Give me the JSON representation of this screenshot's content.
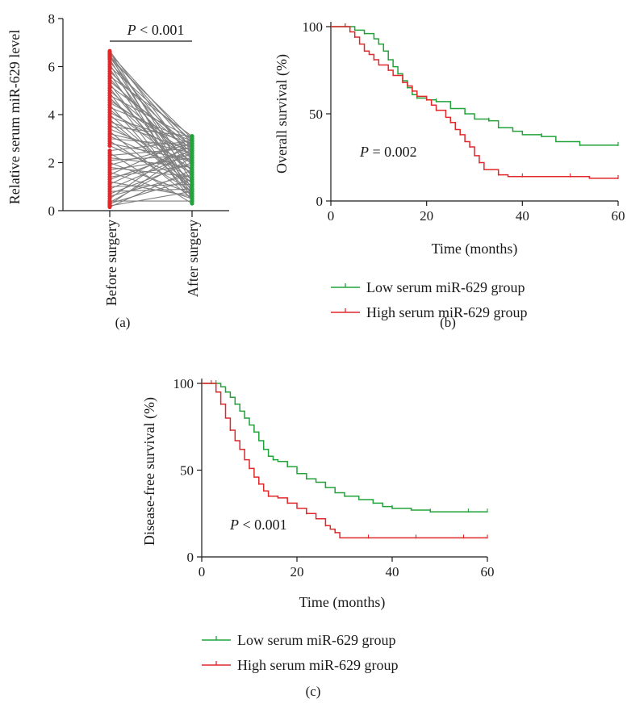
{
  "chart_data": [
    {
      "panel": "(a)",
      "type": "scatter",
      "xlabel": "",
      "ylabel": "Relative serum miR-629 level",
      "categories": [
        "Before surgery",
        "After surgery"
      ],
      "ylim": [
        0,
        8
      ],
      "yticks": [
        0,
        2,
        4,
        6,
        8
      ],
      "annotation": {
        "p_label": "P",
        "p_rest": " < 0.001"
      },
      "colors": {
        "before": "#e0282b",
        "after": "#21a33a",
        "lines": "#7f7f7f"
      },
      "pairs": [
        [
          6.65,
          2.1
        ],
        [
          6.6,
          1.2
        ],
        [
          6.55,
          2.8
        ],
        [
          6.5,
          0.6
        ],
        [
          6.45,
          2.6
        ],
        [
          6.4,
          1.6
        ],
        [
          6.35,
          3.0
        ],
        [
          6.3,
          0.9
        ],
        [
          6.2,
          2.2
        ],
        [
          6.1,
          0.5
        ],
        [
          6.0,
          2.9
        ],
        [
          5.9,
          1.4
        ],
        [
          5.8,
          2.5
        ],
        [
          5.7,
          0.8
        ],
        [
          5.6,
          3.1
        ],
        [
          5.5,
          1.9
        ],
        [
          5.4,
          2.4
        ],
        [
          5.3,
          0.7
        ],
        [
          5.2,
          2.7
        ],
        [
          5.1,
          1.1
        ],
        [
          5.0,
          2.0
        ],
        [
          4.9,
          0.4
        ],
        [
          4.8,
          3.0
        ],
        [
          4.7,
          1.5
        ],
        [
          4.6,
          2.3
        ],
        [
          4.5,
          2.6
        ],
        [
          4.4,
          0.6
        ],
        [
          4.3,
          2.9
        ],
        [
          4.2,
          1.7
        ],
        [
          4.1,
          2.2
        ],
        [
          4.0,
          1.0
        ],
        [
          3.9,
          2.8
        ],
        [
          3.8,
          0.9
        ],
        [
          3.7,
          2.5
        ],
        [
          3.6,
          1.3
        ],
        [
          3.5,
          3.1
        ],
        [
          3.4,
          2.0
        ],
        [
          3.3,
          0.5
        ],
        [
          3.2,
          2.4
        ],
        [
          3.1,
          1.6
        ],
        [
          3.0,
          2.7
        ],
        [
          2.9,
          0.8
        ],
        [
          2.8,
          2.1
        ],
        [
          2.7,
          1.2
        ],
        [
          2.5,
          2.9
        ],
        [
          2.4,
          0.3
        ],
        [
          2.3,
          2.6
        ],
        [
          2.2,
          1.8
        ],
        [
          2.1,
          2.3
        ],
        [
          2.0,
          0.7
        ],
        [
          1.9,
          2.8
        ],
        [
          1.8,
          1.4
        ],
        [
          1.7,
          2.2
        ],
        [
          1.6,
          0.5
        ],
        [
          1.5,
          3.0
        ],
        [
          1.4,
          1.9
        ],
        [
          1.3,
          2.5
        ],
        [
          1.2,
          0.6
        ],
        [
          1.1,
          2.7
        ],
        [
          1.0,
          1.1
        ],
        [
          0.9,
          2.4
        ],
        [
          0.8,
          0.9
        ],
        [
          0.7,
          2.0
        ],
        [
          0.6,
          1.5
        ],
        [
          0.5,
          2.9
        ],
        [
          0.4,
          0.4
        ],
        [
          0.35,
          2.2
        ],
        [
          0.3,
          1.3
        ],
        [
          0.25,
          2.6
        ],
        [
          0.2,
          0.8
        ],
        [
          0.15,
          1.7
        ]
      ]
    },
    {
      "panel": "(b)",
      "type": "line",
      "xlabel": "Time (months)",
      "ylabel": "Overall survival (%)",
      "xlim": [
        0,
        60
      ],
      "ylim": [
        0,
        100
      ],
      "xticks": [
        0,
        20,
        40,
        60
      ],
      "yticks": [
        0,
        50,
        100
      ],
      "annotation": {
        "p_label": "P",
        "p_rest": " = 0.002"
      },
      "series": [
        {
          "name": "Low serum miR-629 group",
          "color": "#21a33a",
          "x": [
            0,
            3,
            5,
            7,
            9,
            10,
            11,
            12,
            13,
            14,
            15,
            16,
            17,
            18,
            20,
            22,
            25,
            28,
            30,
            33,
            35,
            38,
            40,
            44,
            47,
            52,
            56,
            60
          ],
          "y": [
            100,
            100,
            98,
            96,
            93,
            90,
            86,
            81,
            77,
            73,
            69,
            65,
            61,
            59,
            58,
            57,
            53,
            50,
            47,
            46,
            42,
            40,
            38,
            37,
            34,
            32,
            32,
            32
          ]
        },
        {
          "name": "High serum miR-629 group",
          "color": "#e0282b",
          "x": [
            0,
            3,
            4,
            5,
            6,
            7,
            8,
            9,
            10,
            12,
            13,
            15,
            16,
            17,
            18,
            20,
            21,
            22,
            24,
            25,
            26,
            27,
            28,
            29,
            30,
            31,
            32,
            35,
            37,
            40,
            45,
            50,
            54,
            60
          ],
          "y": [
            100,
            100,
            97,
            94,
            90,
            86,
            84,
            81,
            78,
            75,
            72,
            68,
            66,
            63,
            60,
            58,
            55,
            52,
            48,
            45,
            41,
            38,
            34,
            31,
            26,
            22,
            18,
            15,
            14,
            14,
            14,
            14,
            13,
            13
          ]
        }
      ]
    },
    {
      "panel": "(c)",
      "type": "line",
      "xlabel": "Time (months)",
      "ylabel": "Disease-free survival (%)",
      "xlim": [
        0,
        60
      ],
      "ylim": [
        0,
        100
      ],
      "xticks": [
        0,
        20,
        40,
        60
      ],
      "yticks": [
        0,
        50,
        100
      ],
      "annotation": {
        "p_label": "P",
        "p_rest": " < 0.001"
      },
      "series": [
        {
          "name": "Low serum miR-629 group",
          "color": "#21a33a",
          "x": [
            0,
            3,
            4,
            5,
            6,
            7,
            8,
            9,
            10,
            11,
            12,
            13,
            14,
            15,
            16,
            18,
            20,
            22,
            24,
            26,
            28,
            30,
            33,
            36,
            38,
            40,
            44,
            48,
            52,
            56,
            60
          ],
          "y": [
            100,
            100,
            98,
            95,
            92,
            88,
            84,
            80,
            76,
            72,
            67,
            62,
            58,
            56,
            55,
            52,
            48,
            45,
            43,
            40,
            37,
            35,
            33,
            31,
            29,
            28,
            27,
            26,
            26,
            26,
            26
          ]
        },
        {
          "name": "High serum miR-629 group",
          "color": "#e0282b",
          "x": [
            0,
            2,
            3,
            4,
            5,
            6,
            7,
            8,
            9,
            10,
            11,
            12,
            13,
            14,
            16,
            18,
            20,
            22,
            24,
            26,
            27,
            28,
            29,
            35,
            40,
            45,
            50,
            55,
            60
          ],
          "y": [
            100,
            100,
            95,
            88,
            80,
            73,
            67,
            62,
            56,
            51,
            46,
            42,
            38,
            35,
            34,
            31,
            28,
            25,
            22,
            18,
            16,
            14,
            11,
            11,
            11,
            11,
            11,
            11,
            11
          ]
        }
      ]
    }
  ]
}
